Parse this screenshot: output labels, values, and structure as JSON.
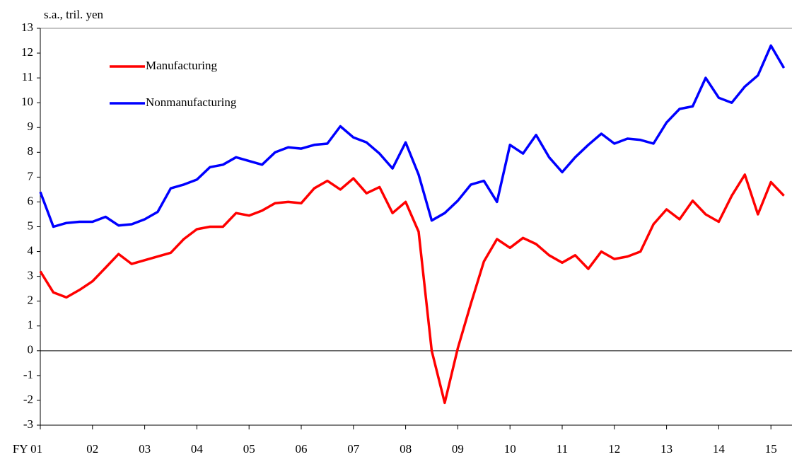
{
  "chart_data": {
    "type": "line",
    "y_label": "s.a., tril. yen",
    "categories": [
      "FY 01",
      null,
      null,
      null,
      "02",
      null,
      null,
      null,
      "03",
      null,
      null,
      null,
      "04",
      null,
      null,
      null,
      "05",
      null,
      null,
      null,
      "06",
      null,
      null,
      null,
      "07",
      null,
      null,
      null,
      "08",
      null,
      null,
      null,
      "09",
      null,
      null,
      null,
      "10",
      null,
      null,
      null,
      "11",
      null,
      null,
      null,
      "12",
      null,
      null,
      null,
      "13",
      null,
      null,
      null,
      "14",
      null,
      null,
      null,
      "15",
      null
    ],
    "series": [
      {
        "name": "Manufacturing",
        "color": "#ff0000",
        "values": [
          3.2,
          2.35,
          2.15,
          2.45,
          2.8,
          3.35,
          3.9,
          3.5,
          3.65,
          3.8,
          3.95,
          4.5,
          4.9,
          5.0,
          5.0,
          5.55,
          5.45,
          5.65,
          5.95,
          6.0,
          5.95,
          6.55,
          6.85,
          6.5,
          6.95,
          6.35,
          6.6,
          5.55,
          6.0,
          4.8,
          0.0,
          -2.1,
          0.1,
          1.9,
          3.6,
          4.5,
          4.15,
          4.55,
          4.3,
          3.85,
          3.55,
          3.85,
          3.3,
          4.0,
          3.7,
          3.8,
          4.0,
          5.1,
          5.7,
          5.3,
          6.05,
          5.5,
          5.2,
          6.25,
          7.1,
          5.5,
          6.8,
          6.25
        ]
      },
      {
        "name": "Nonmanufacturing",
        "color": "#0000ff",
        "values": [
          6.4,
          5.0,
          5.15,
          5.2,
          5.2,
          5.4,
          5.05,
          5.1,
          5.3,
          5.6,
          6.55,
          6.7,
          6.9,
          7.4,
          7.5,
          7.8,
          7.65,
          7.5,
          8.0,
          8.2,
          8.15,
          8.3,
          8.35,
          9.05,
          8.6,
          8.4,
          7.95,
          7.35,
          8.4,
          7.1,
          5.25,
          5.55,
          6.05,
          6.7,
          6.85,
          6.0,
          8.3,
          7.95,
          8.7,
          7.8,
          7.2,
          7.8,
          8.3,
          8.75,
          8.35,
          8.55,
          8.5,
          8.35,
          9.2,
          9.75,
          9.85,
          11.0,
          10.2,
          10.0,
          10.65,
          11.1,
          12.3,
          11.4
        ]
      }
    ],
    "ylim": [
      -3,
      13
    ],
    "yticks": [
      -3,
      -2,
      -1,
      0,
      1,
      2,
      3,
      4,
      5,
      6,
      7,
      8,
      9,
      10,
      11,
      12,
      13
    ],
    "legend": "upper left"
  }
}
